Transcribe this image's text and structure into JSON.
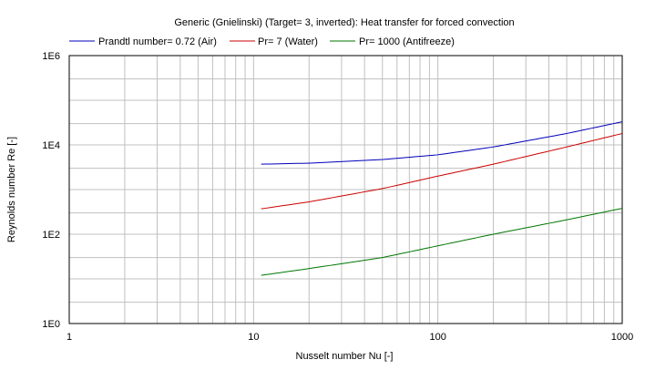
{
  "chart_data": {
    "type": "line",
    "title": "Generic (Gnielinski) (Target= 3, inverted): Heat transfer for forced convection",
    "xlabel": "Nusselt number Nu [-]",
    "ylabel": "Reynolds number Re [-]",
    "x_scale": "log",
    "y_scale": "log",
    "xlim": [
      1,
      1000
    ],
    "ylim": [
      1,
      1000000
    ],
    "x_ticks": [
      {
        "value": 1,
        "label": "1"
      },
      {
        "value": 10,
        "label": "10"
      },
      {
        "value": 100,
        "label": "100"
      },
      {
        "value": 1000,
        "label": "1000"
      }
    ],
    "y_ticks": [
      {
        "value": 1,
        "label": "1E0"
      },
      {
        "value": 100,
        "label": "1E2"
      },
      {
        "value": 10000,
        "label": "1E4"
      },
      {
        "value": 1000000,
        "label": "1E6"
      }
    ],
    "grid": true,
    "legend_position": "top",
    "series": [
      {
        "name": "Prandtl number= 0.72 (Air)",
        "color": "#0000bb",
        "points": [
          [
            11,
            3700
          ],
          [
            20,
            3900
          ],
          [
            50,
            4700
          ],
          [
            100,
            6000
          ],
          [
            200,
            9000
          ],
          [
            500,
            18000
          ],
          [
            1000,
            33000
          ]
        ]
      },
      {
        "name": "Pr= 7 (Water)",
        "color": "#cc0000",
        "points": [
          [
            11,
            370
          ],
          [
            20,
            530
          ],
          [
            50,
            1050
          ],
          [
            100,
            2000
          ],
          [
            200,
            3700
          ],
          [
            500,
            9000
          ],
          [
            1000,
            18000
          ]
        ]
      },
      {
        "name": "Pr= 1000 (Antifreeze)",
        "color": "#007700",
        "points": [
          [
            11,
            12
          ],
          [
            20,
            17
          ],
          [
            50,
            30
          ],
          [
            100,
            55
          ],
          [
            200,
            100
          ],
          [
            500,
            210
          ],
          [
            1000,
            380
          ]
        ]
      }
    ]
  }
}
